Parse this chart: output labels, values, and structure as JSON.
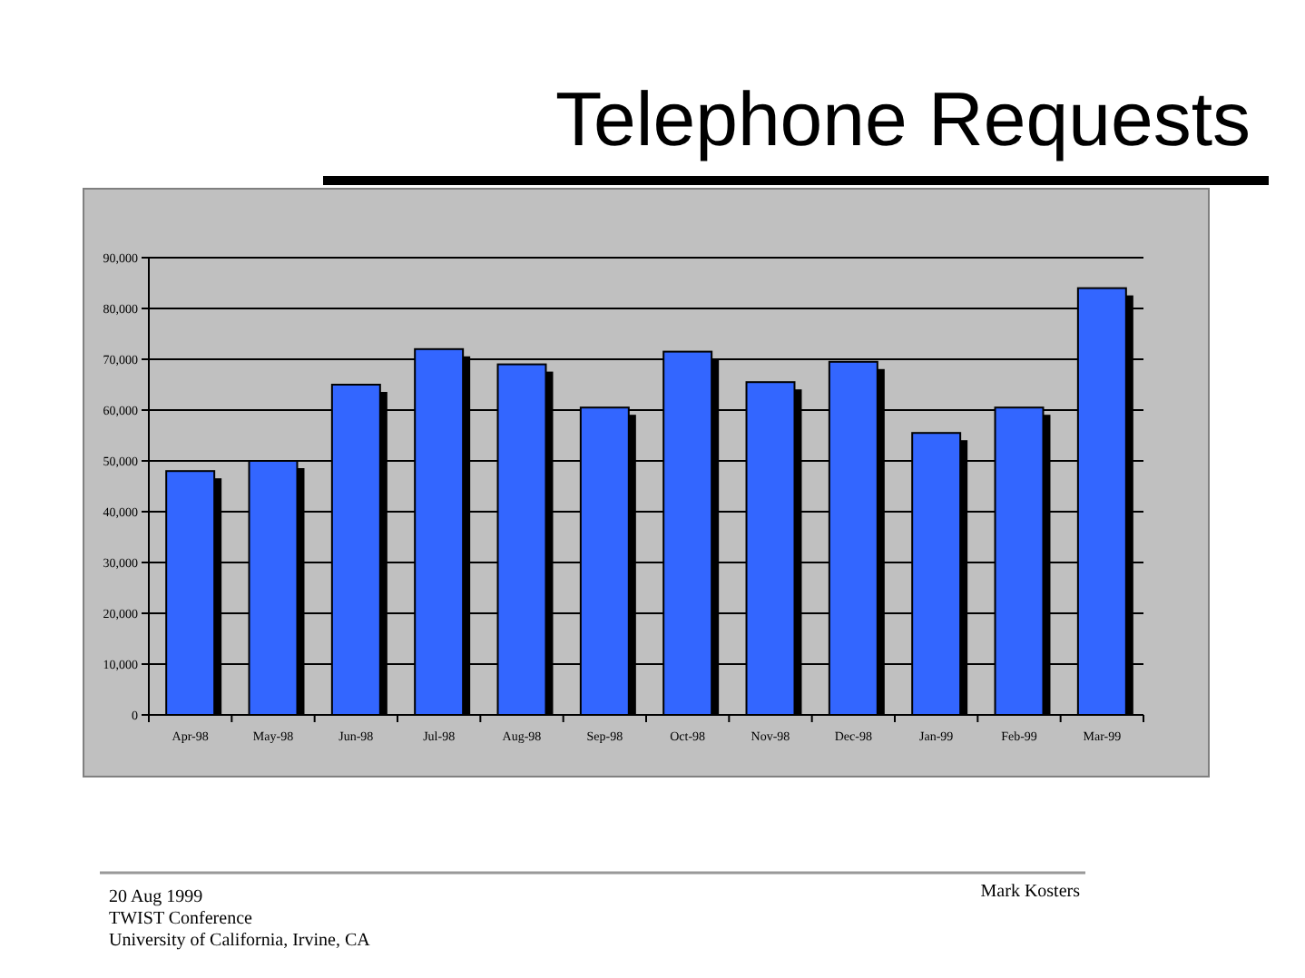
{
  "chart_data": {
    "type": "bar",
    "title": "Telephone Requests",
    "categories": [
      "Apr-98",
      "May-98",
      "Jun-98",
      "Jul-98",
      "Aug-98",
      "Sep-98",
      "Oct-98",
      "Nov-98",
      "Dec-98",
      "Jan-99",
      "Feb-99",
      "Mar-99"
    ],
    "values": [
      48000,
      50000,
      65000,
      72000,
      69000,
      60500,
      71500,
      65500,
      69500,
      55500,
      60500,
      84000
    ],
    "color": "#3366ff",
    "ylim": [
      0,
      90000
    ],
    "yticks": [
      {
        "value": 0,
        "label": "0"
      },
      {
        "value": 10000,
        "label": "10,000"
      },
      {
        "value": 20000,
        "label": "20,000"
      },
      {
        "value": 30000,
        "label": "30,000"
      },
      {
        "value": 40000,
        "label": "40,000"
      },
      {
        "value": 50000,
        "label": "50,000"
      },
      {
        "value": 60000,
        "label": "60,000"
      },
      {
        "value": 70000,
        "label": "70,000"
      },
      {
        "value": 80000,
        "label": "80,000"
      },
      {
        "value": 90000,
        "label": "90,000"
      }
    ],
    "grid": "y",
    "annotations": [
      "20 Aug 1999",
      "TWIST Conference",
      "University of California, Irvine, CA",
      "Mark Kosters"
    ]
  }
}
